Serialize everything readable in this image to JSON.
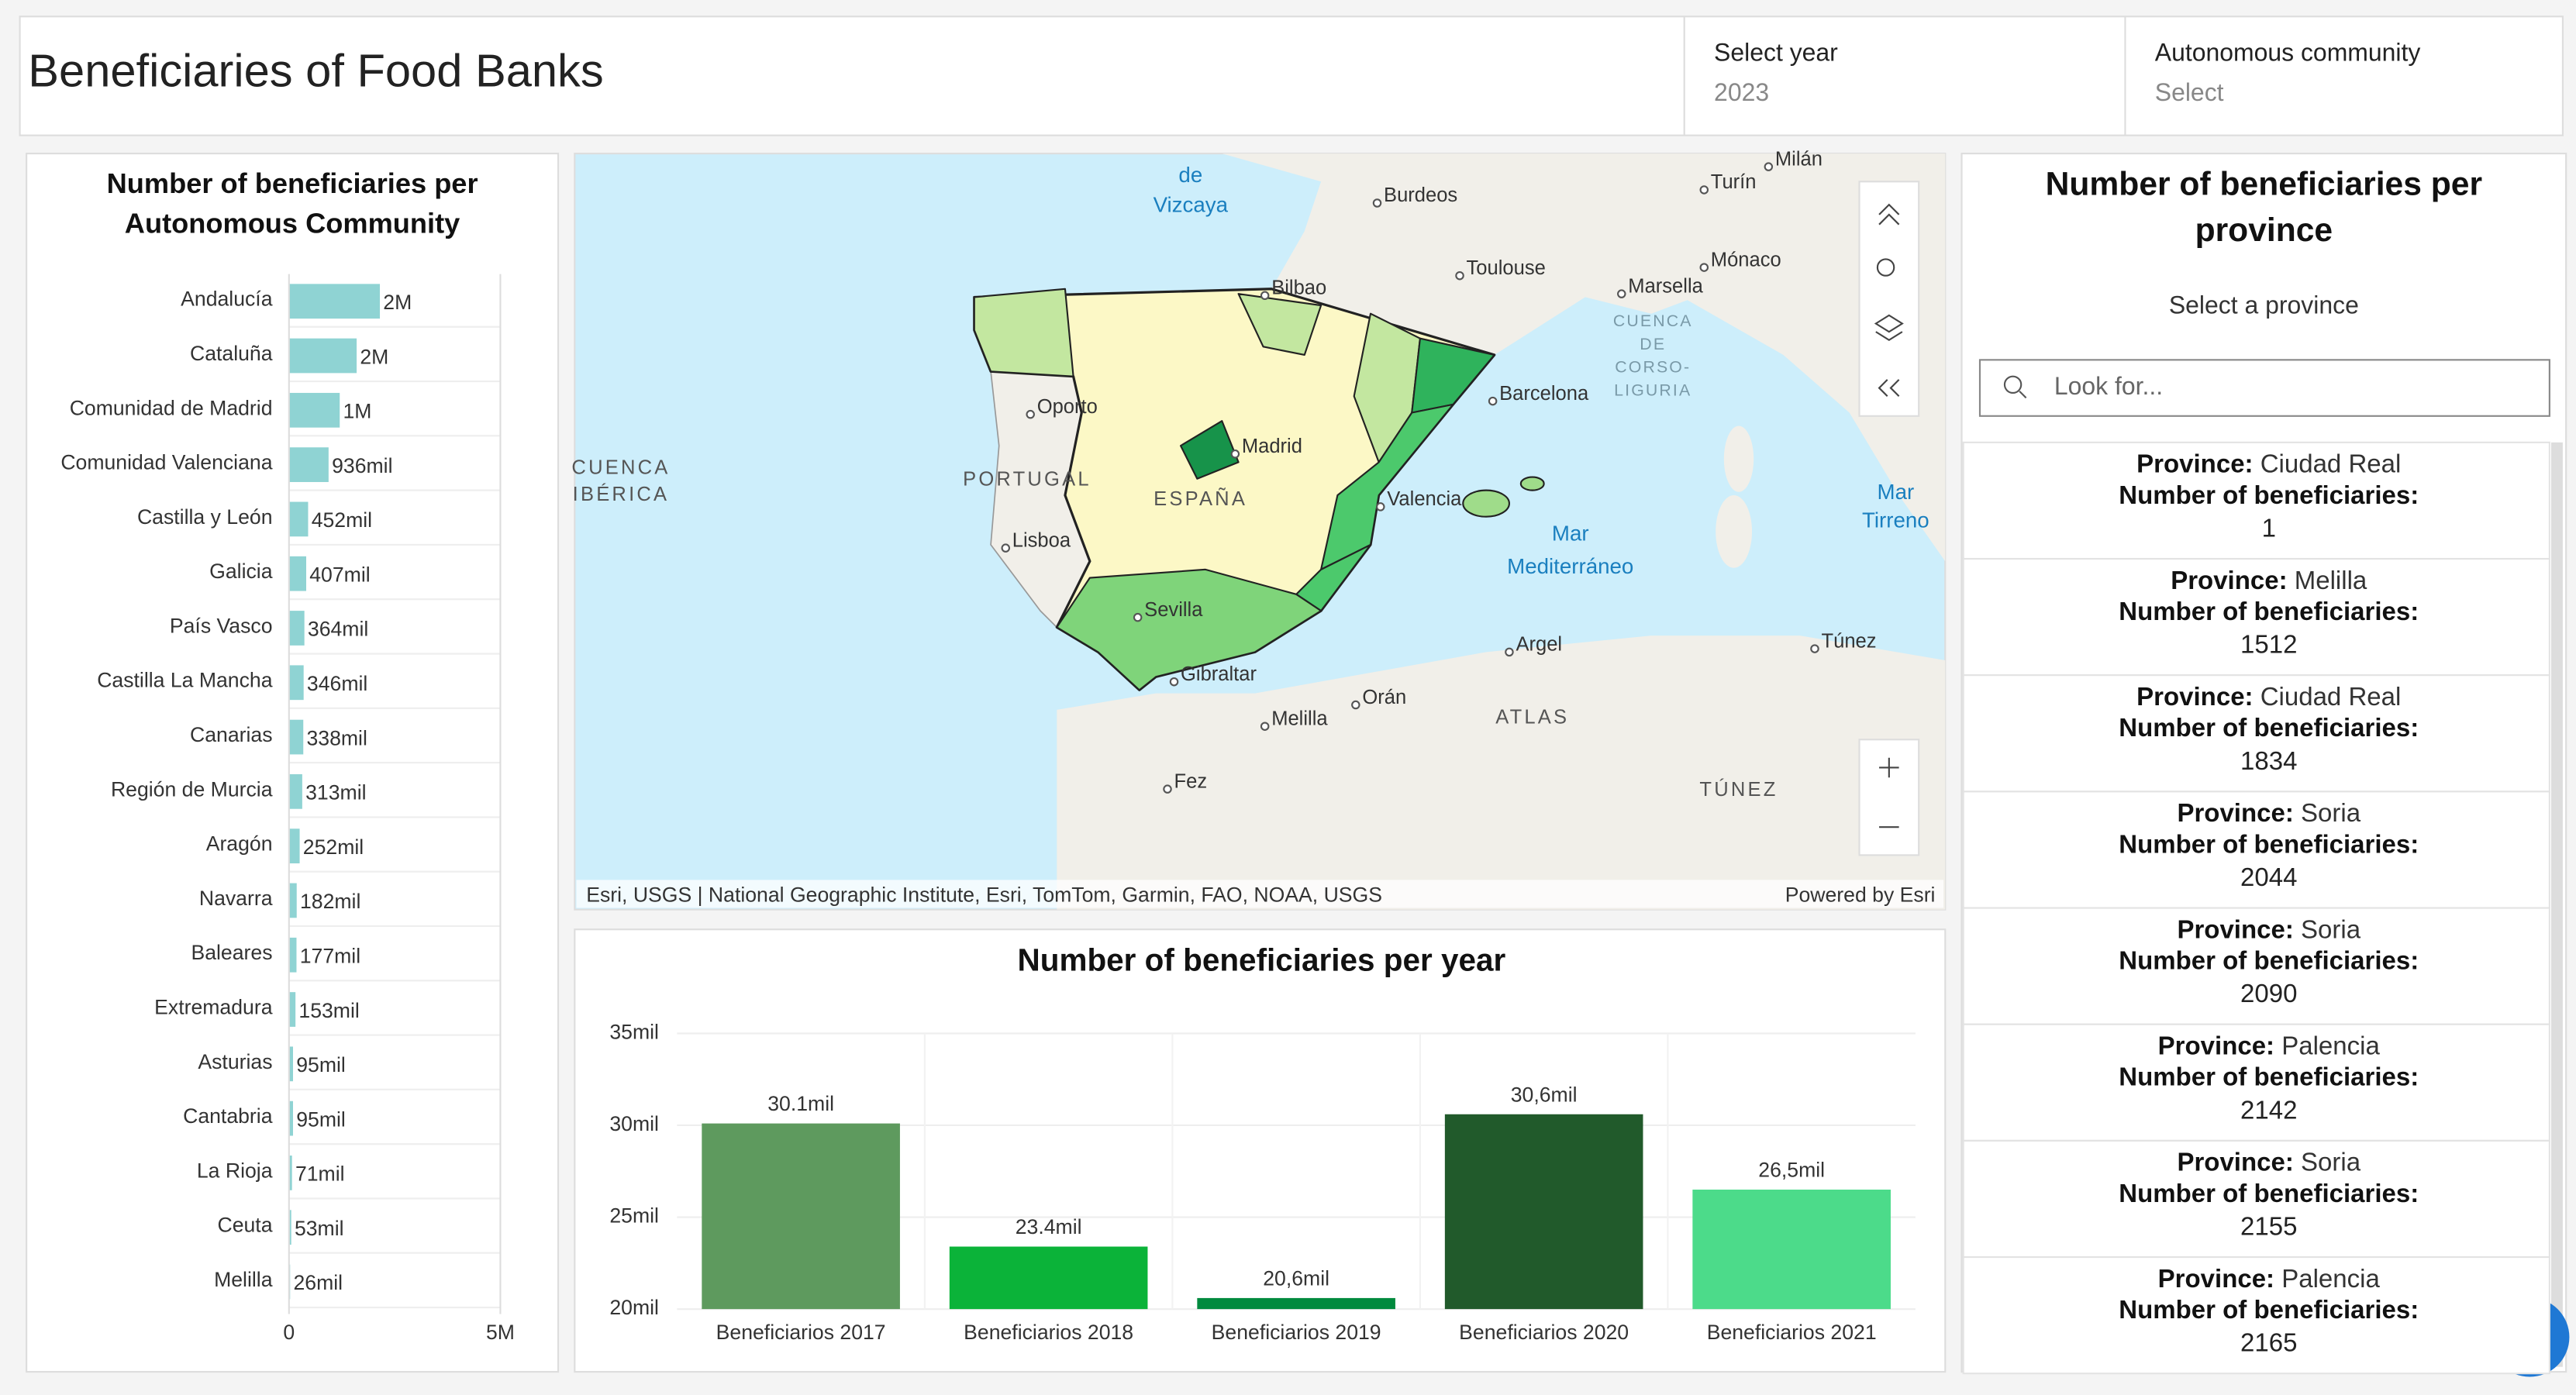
{
  "header": {
    "title": "Beneficiaries of Food Banks",
    "filters": [
      {
        "label": "Select year",
        "value": "2023"
      },
      {
        "label": "Autonomous community",
        "value": "Select"
      }
    ]
  },
  "chart_data": [
    {
      "type": "barh",
      "title": "Number of beneficiaries per Autonomous Community",
      "color": "#8fd3d3",
      "categories": [
        "Andalucía",
        "Cataluña",
        "Comunidad de Madrid",
        "Comunidad Valenciana",
        "Castilla y León",
        "Galicia",
        "País Vasco",
        "Castilla La Mancha",
        "Canarias",
        "Región de Murcia",
        "Aragón",
        "Navarra",
        "Baleares",
        "Extremadura",
        "Asturias",
        "Cantabria",
        "La Rioja",
        "Ceuta",
        "Melilla"
      ],
      "values": [
        2150000,
        1600000,
        1200000,
        936000,
        452000,
        407000,
        364000,
        346000,
        338000,
        313000,
        252000,
        182000,
        177000,
        153000,
        95000,
        95000,
        71000,
        53000,
        26000
      ],
      "value_labels": [
        "2M",
        "2M",
        "1M",
        "936mil",
        "452mil",
        "407mil",
        "364mil",
        "346mil",
        "338mil",
        "313mil",
        "252mil",
        "182mil",
        "177mil",
        "153mil",
        "95mil",
        "95mil",
        "71mil",
        "53mil",
        "26mil"
      ],
      "xlim": [
        0,
        5000000
      ],
      "xticks": [
        0,
        {
          "value": 5000000,
          "label": "5M"
        }
      ]
    },
    {
      "type": "bar",
      "title": "Number of beneficiaries per year",
      "categories": [
        "Beneficiarios 2017",
        "Beneficiarios 2018",
        "Beneficiarios 2019",
        "Beneficiarios 2020",
        "Beneficiarios 2021"
      ],
      "values": [
        30100,
        23400,
        20600,
        30600,
        26500
      ],
      "value_labels": [
        "30.1mil",
        "23.4mil",
        "20,6mil",
        "30,6mil",
        "26,5mil"
      ],
      "colors": [
        "#5e9a5e",
        "#0bb339",
        "#008a3e",
        "#215a2b",
        "#4cdb8a"
      ],
      "ylim": [
        20000,
        35000
      ],
      "yticks": [
        {
          "value": 20000,
          "label": "20mil"
        },
        {
          "value": 25000,
          "label": "25mil"
        },
        {
          "value": 30000,
          "label": "30mil"
        },
        {
          "value": 35000,
          "label": "35mil"
        }
      ],
      "grid": true
    }
  ],
  "map": {
    "labels": [
      "de",
      "Vizcaya",
      "Burdeos",
      "Milán",
      "Turín",
      "Toulouse",
      "Mónaco",
      "Marsella",
      "Bilbao",
      "Oporto",
      "Barcelona",
      "Madrid",
      "ESPAÑA",
      "PORTUGAL",
      "Valencia",
      "Lisboa",
      "Sevilla",
      "Gibraltar",
      "Argel",
      "Túnez",
      "Orán",
      "Melilla",
      "Fez",
      "ATLAS",
      "TÚNEZ",
      "CUENCA",
      "IBÉRICA",
      "CUENCA",
      "DE",
      "CORSO-",
      "LIGURIA",
      "Mar",
      "Mediterráneo",
      "Mar",
      "Tirreno"
    ],
    "attribution": "Esri, USGS | National Geographic Institute, Esri, TomTom, Garmin, FAO, NOAA, USGS",
    "powered": "Powered by Esri"
  },
  "province_list": {
    "title": "Number of beneficiaries per province",
    "subtitle": "Select a province",
    "search_placeholder": "Look for...",
    "province_label": "Province:",
    "count_label": "Number of beneficiaries:",
    "items": [
      {
        "province": "Ciudad Real",
        "beneficiaries": 1
      },
      {
        "province": "Melilla",
        "beneficiaries": 1512
      },
      {
        "province": "Ciudad Real",
        "beneficiaries": 1834
      },
      {
        "province": "Soria",
        "beneficiaries": 2044
      },
      {
        "province": "Soria",
        "beneficiaries": 2090
      },
      {
        "province": "Palencia",
        "beneficiaries": 2142
      },
      {
        "province": "Soria",
        "beneficiaries": 2155
      },
      {
        "province": "Palencia",
        "beneficiaries": 2165
      }
    ]
  }
}
